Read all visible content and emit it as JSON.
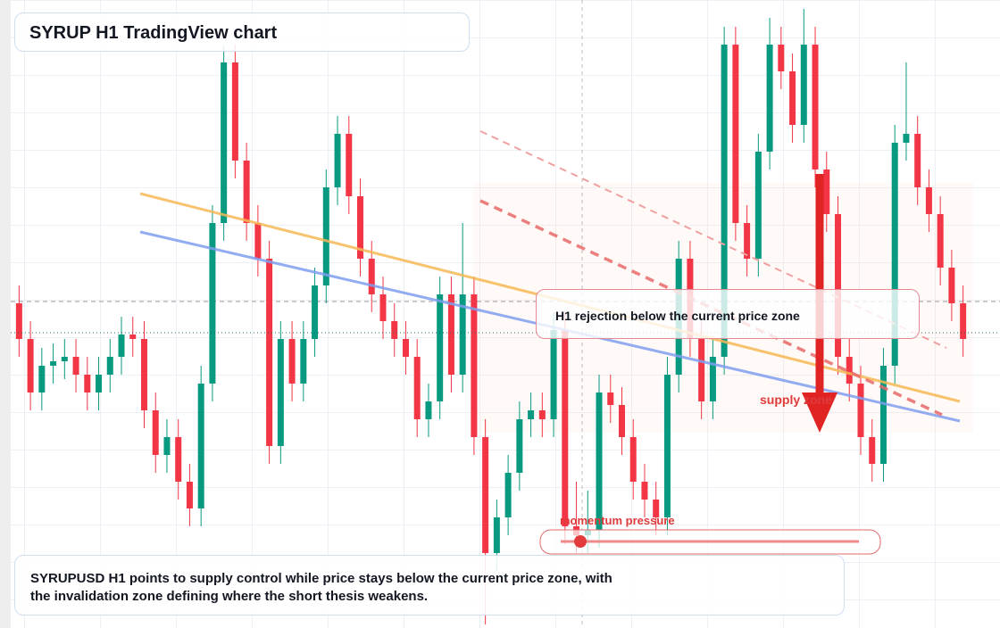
{
  "chart_data": {
    "type": "candlestick",
    "title": "SYRUP H1 TradingView chart",
    "annotations": [
      "H1 rejection below the current price zone",
      "supply zone",
      "momentum pressure"
    ],
    "caption": "SYRUPUSD H1 points to supply control while price stays below the current price zone, with the invalidation zone defining where the short thesis weakens.",
    "up_color": "#089981",
    "down_color": "#f23645",
    "ylim": [
      0,
      70.4
    ],
    "candles": [
      [
        36.4,
        38.4,
        30.4,
        32.4
      ],
      [
        32.4,
        34.4,
        24.4,
        26.4
      ],
      [
        26.4,
        31.4,
        24.4,
        29.4
      ],
      [
        29.4,
        31.9,
        27.4,
        29.9
      ],
      [
        29.9,
        32.4,
        27.9,
        30.4
      ],
      [
        30.4,
        32.4,
        26.4,
        28.4
      ],
      [
        28.4,
        30.4,
        24.4,
        26.4
      ],
      [
        26.4,
        30.4,
        24.4,
        28.4
      ],
      [
        28.4,
        32.4,
        26.4,
        30.4
      ],
      [
        30.4,
        34.9,
        28.4,
        32.9
      ],
      [
        32.9,
        34.9,
        30.4,
        32.4
      ],
      [
        32.4,
        34.4,
        22.4,
        24.4
      ],
      [
        24.4,
        26.4,
        17.4,
        19.4
      ],
      [
        19.4,
        23.4,
        17.4,
        21.4
      ],
      [
        21.4,
        23.4,
        14.4,
        16.4
      ],
      [
        16.4,
        18.4,
        11.4,
        13.4
      ],
      [
        13.4,
        29.4,
        11.4,
        27.4
      ],
      [
        27.4,
        47.4,
        25.4,
        45.4
      ],
      [
        45.4,
        65.4,
        43.4,
        63.4
      ],
      [
        63.4,
        65.4,
        50.4,
        52.4
      ],
      [
        52.4,
        54.4,
        43.4,
        45.4
      ],
      [
        45.4,
        47.4,
        39.4,
        41.4
      ],
      [
        41.4,
        43.4,
        18.4,
        20.4
      ],
      [
        20.4,
        34.4,
        18.4,
        32.4
      ],
      [
        32.4,
        34.4,
        25.4,
        27.4
      ],
      [
        27.4,
        34.4,
        25.4,
        32.4
      ],
      [
        32.4,
        40.4,
        30.4,
        38.4
      ],
      [
        38.4,
        51.4,
        36.4,
        49.4
      ],
      [
        49.4,
        57.4,
        47.4,
        55.4
      ],
      [
        55.4,
        57.4,
        46.4,
        48.4
      ],
      [
        48.4,
        50.4,
        39.4,
        41.4
      ],
      [
        41.4,
        43.4,
        35.4,
        37.4
      ],
      [
        37.4,
        39.4,
        32.4,
        34.4
      ],
      [
        34.4,
        36.4,
        30.4,
        32.4
      ],
      [
        32.4,
        34.4,
        28.4,
        30.4
      ],
      [
        30.4,
        32.4,
        21.4,
        23.4
      ],
      [
        23.4,
        27.4,
        21.4,
        25.4
      ],
      [
        25.4,
        39.4,
        23.4,
        37.4
      ],
      [
        37.4,
        39.4,
        26.4,
        28.4
      ],
      [
        28.4,
        45.4,
        26.4,
        37.4
      ],
      [
        37.4,
        39.4,
        19.4,
        21.4
      ],
      [
        21.4,
        23.4,
        0.4,
        8.4
      ],
      [
        8.4,
        14.4,
        6.4,
        12.4
      ],
      [
        12.4,
        19.4,
        10.4,
        17.4
      ],
      [
        17.4,
        25.4,
        15.4,
        23.4
      ],
      [
        23.4,
        26.4,
        21.4,
        24.4
      ],
      [
        24.4,
        26.4,
        21.4,
        23.4
      ],
      [
        23.4,
        35.4,
        21.4,
        33.4
      ],
      [
        33.4,
        35.4,
        9.4,
        11.4
      ],
      [
        11.4,
        16.4,
        8.4,
        10.4
      ],
      [
        10.4,
        15.4,
        8.4,
        11.0
      ],
      [
        11.0,
        28.4,
        9.0,
        26.4
      ],
      [
        26.4,
        28.4,
        23.0,
        25.0
      ],
      [
        25.0,
        27.0,
        19.4,
        21.4
      ],
      [
        21.4,
        23.4,
        14.4,
        16.4
      ],
      [
        16.4,
        18.4,
        12.4,
        14.4
      ],
      [
        14.4,
        16.4,
        10.4,
        12.4
      ],
      [
        12.4,
        30.4,
        10.4,
        28.4
      ],
      [
        28.4,
        43.4,
        26.4,
        41.4
      ],
      [
        41.4,
        43.4,
        30.4,
        32.4
      ],
      [
        32.4,
        34.4,
        23.4,
        25.4
      ],
      [
        25.4,
        32.4,
        23.4,
        30.4
      ],
      [
        30.4,
        67.4,
        28.4,
        65.4
      ],
      [
        65.4,
        67.4,
        43.4,
        45.4
      ],
      [
        45.4,
        47.4,
        39.4,
        41.4
      ],
      [
        41.4,
        55.4,
        39.4,
        53.4
      ],
      [
        53.4,
        68.4,
        51.4,
        65.4
      ],
      [
        65.4,
        67.4,
        60.4,
        62.4
      ],
      [
        62.4,
        64.4,
        54.4,
        56.4
      ],
      [
        56.4,
        69.4,
        54.4,
        65.4
      ],
      [
        65.4,
        67.4,
        49.4,
        51.4
      ],
      [
        51.4,
        53.4,
        44.4,
        46.4
      ],
      [
        46.4,
        48.4,
        28.4,
        30.4
      ],
      [
        30.4,
        32.4,
        25.4,
        27.4
      ],
      [
        27.4,
        29.4,
        19.4,
        21.4
      ],
      [
        21.4,
        23.4,
        16.4,
        18.4
      ],
      [
        18.4,
        31.4,
        16.4,
        29.4
      ],
      [
        29.4,
        56.4,
        27.4,
        54.4
      ],
      [
        54.4,
        63.4,
        52.4,
        55.4
      ],
      [
        55.4,
        57.4,
        47.4,
        49.4
      ],
      [
        49.4,
        51.4,
        44.4,
        46.4
      ],
      [
        46.4,
        48.4,
        38.4,
        40.4
      ],
      [
        40.4,
        42.4,
        34.4,
        36.4
      ],
      [
        36.4,
        38.4,
        30.4,
        32.4
      ]
    ]
  }
}
